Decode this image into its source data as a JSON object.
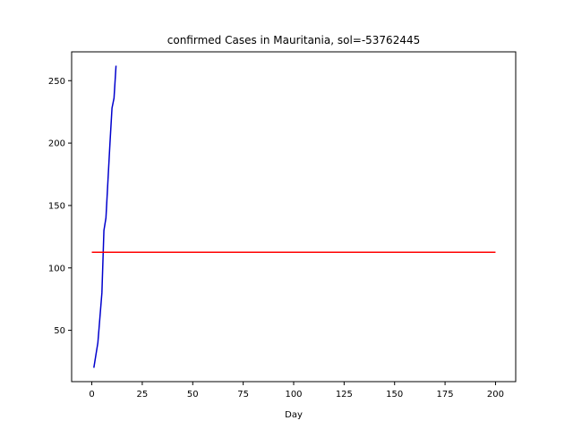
{
  "chart_data": {
    "type": "line",
    "title": "confirmed Cases in Mauritania, sol=-53762445",
    "xlabel": "Day",
    "ylabel": "",
    "xlim": [
      -10,
      210
    ],
    "ylim": [
      8.9,
      273.1
    ],
    "xticks": [
      0,
      25,
      50,
      75,
      100,
      125,
      150,
      175,
      200
    ],
    "xtick_labels": [
      "0",
      "25",
      "50",
      "75",
      "100",
      "125",
      "150",
      "175",
      "200"
    ],
    "yticks": [
      50,
      100,
      150,
      200,
      250
    ],
    "ytick_labels": [
      "50",
      "100",
      "150",
      "200",
      "250"
    ],
    "grid": false,
    "series": [
      {
        "name": "confirmed",
        "color": "#0000cd",
        "x": [
          1,
          2,
          3,
          4,
          5,
          6,
          7,
          8,
          9,
          10,
          11,
          12
        ],
        "y": [
          20,
          30,
          40,
          60,
          80,
          130,
          140,
          170,
          200,
          228,
          236,
          262
        ]
      },
      {
        "name": "model",
        "color": "#ff0000",
        "x": [
          0,
          200
        ],
        "y": [
          112.5,
          112.5
        ]
      }
    ]
  }
}
